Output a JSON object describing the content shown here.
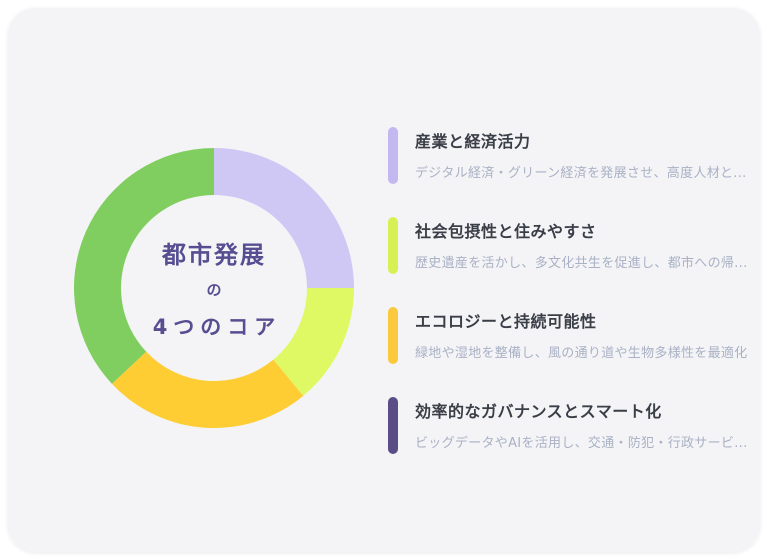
{
  "page": {
    "background_color": "#FFFFFF",
    "card_background_color": "#F4F4F7"
  },
  "chart_data": {
    "type": "pie",
    "subtype": "donut",
    "title": "都市発展の4つのコア",
    "center_lines": [
      "都市発展",
      "の",
      "4つのコア"
    ],
    "center_text_color": "#564E91",
    "start_angle_deg": 0,
    "direction": "clockwise",
    "legend_position": "right",
    "segments": [
      {
        "label": "産業と経済活力",
        "value": 25,
        "color": "#CFC8F4"
      },
      {
        "label": "社会包摂性と住みやすさ",
        "value": 14,
        "color": "#DEF963"
      },
      {
        "label": "エコロジーと持続可能性",
        "value": 24,
        "color": "#FECD33"
      },
      {
        "label": "効率的なガバナンスとスマート化",
        "value": 37,
        "color": "#7FCE5F"
      }
    ]
  },
  "legend": {
    "items": [
      {
        "title": "産業と経済活力",
        "description": "デジタル経済・グリーン経済を発展させ、高度人材と...",
        "color": "#C3B8F0"
      },
      {
        "title": "社会包摂性と住みやすさ",
        "description": "歴史遺産を活かし、多文化共生を促進し、都市への帰...",
        "color": "#D7F155"
      },
      {
        "title": "エコロジーと持続可能性",
        "description": "緑地や湿地を整備し、風の通り道や生物多様性を最適化",
        "color": "#FBC93C"
      },
      {
        "title": "効率的なガバナンスとスマート化",
        "description": "ビッグデータやAIを活用し、交通・防犯・行政サービ...",
        "color": "#5A4D85"
      }
    ]
  }
}
